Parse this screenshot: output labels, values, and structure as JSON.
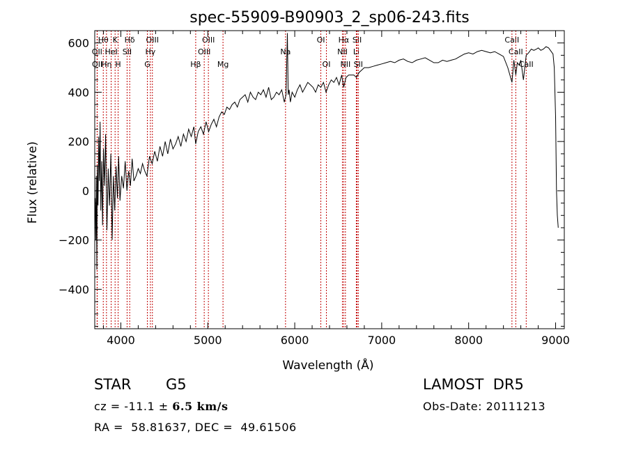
{
  "chart_data": {
    "type": "line",
    "title": "spec-55909-B90903_2_sp06-243.fits",
    "xlabel": "Wavelength (Å)",
    "ylabel": "Flux (relative)",
    "xlim": [
      3700,
      9100
    ],
    "ylim": [
      -560,
      650
    ],
    "xticks": [
      4000,
      5000,
      6000,
      7000,
      8000,
      9000
    ],
    "yticks": [
      -400,
      -200,
      0,
      200,
      400,
      600
    ],
    "x_minor_step": 200,
    "y_minor_step": 50,
    "series": [
      {
        "x": [
          3705,
          3712,
          3718,
          3724,
          3730,
          3738,
          3746,
          3754,
          3762,
          3770,
          3780,
          3790,
          3800,
          3812,
          3825,
          3840,
          3855,
          3870,
          3885,
          3900,
          3915,
          3930,
          3945,
          3960,
          3975,
          3990,
          4010,
          4030,
          4050,
          4070,
          4090,
          4110,
          4130,
          4150,
          4175,
          4200,
          4225,
          4250,
          4275,
          4300,
          4330,
          4360,
          4390,
          4420,
          4450,
          4480,
          4510,
          4540,
          4570,
          4600,
          4630,
          4660,
          4690,
          4720,
          4750,
          4780,
          4810,
          4840,
          4861,
          4890,
          4920,
          4950,
          4980,
          5010,
          5040,
          5070,
          5100,
          5130,
          5160,
          5190,
          5220,
          5250,
          5280,
          5310,
          5340,
          5370,
          5400,
          5430,
          5460,
          5490,
          5520,
          5550,
          5580,
          5610,
          5640,
          5670,
          5700,
          5730,
          5760,
          5790,
          5820,
          5850,
          5880,
          5900,
          5915,
          5925,
          5935,
          5950,
          5970,
          6000,
          6030,
          6060,
          6090,
          6120,
          6150,
          6180,
          6210,
          6240,
          6270,
          6300,
          6330,
          6360,
          6390,
          6420,
          6450,
          6480,
          6510,
          6540,
          6563,
          6590,
          6620,
          6650,
          6680,
          6710,
          6740,
          6770,
          6800,
          6850,
          6900,
          6950,
          7000,
          7050,
          7100,
          7150,
          7200,
          7250,
          7300,
          7350,
          7400,
          7450,
          7500,
          7550,
          7600,
          7650,
          7700,
          7750,
          7800,
          7850,
          7900,
          7950,
          8000,
          8050,
          8100,
          8150,
          8200,
          8250,
          8300,
          8350,
          8400,
          8450,
          8498,
          8520,
          8542,
          8560,
          8580,
          8600,
          8630,
          8662,
          8690,
          8720,
          8750,
          8780,
          8800,
          8830,
          8860,
          8890,
          8920,
          8950,
          8970,
          8985,
          9000,
          9010,
          9020,
          9030
        ],
        "y": [
          -30,
          -200,
          60,
          -320,
          100,
          -60,
          220,
          40,
          280,
          -80,
          120,
          -140,
          170,
          20,
          230,
          -160,
          90,
          -60,
          150,
          -200,
          60,
          -80,
          100,
          -30,
          140,
          -40,
          60,
          10,
          120,
          0,
          80,
          20,
          130,
          40,
          60,
          90,
          70,
          110,
          80,
          60,
          140,
          110,
          160,
          120,
          180,
          140,
          200,
          150,
          210,
          170,
          190,
          220,
          180,
          230,
          200,
          250,
          220,
          260,
          190,
          240,
          260,
          230,
          280,
          240,
          270,
          290,
          260,
          300,
          320,
          310,
          340,
          330,
          350,
          360,
          340,
          370,
          380,
          390,
          360,
          400,
          380,
          370,
          400,
          390,
          410,
          380,
          420,
          370,
          380,
          400,
          390,
          410,
          360,
          390,
          640,
          390,
          410,
          360,
          400,
          380,
          410,
          430,
          400,
          420,
          440,
          430,
          420,
          400,
          430,
          420,
          440,
          400,
          430,
          450,
          440,
          460,
          430,
          470,
          420,
          460,
          470,
          470,
          470,
          460,
          480,
          490,
          500,
          500,
          505,
          510,
          515,
          520,
          525,
          520,
          530,
          535,
          525,
          520,
          530,
          535,
          540,
          530,
          520,
          520,
          530,
          525,
          530,
          535,
          545,
          555,
          560,
          555,
          565,
          570,
          565,
          560,
          565,
          555,
          545,
          500,
          440,
          530,
          470,
          520,
          510,
          530,
          450,
          550,
          560,
          575,
          570,
          575,
          580,
          570,
          575,
          585,
          580,
          565,
          555,
          500,
          300,
          0,
          -100,
          -150
        ]
      }
    ],
    "line_markers": [
      {
        "label": "Hθ",
        "wavelength": 3798,
        "row": 1
      },
      {
        "label": "OII",
        "wavelength": 3727,
        "row": 2
      },
      {
        "label": "OII",
        "wavelength": 3729,
        "row": 3
      },
      {
        "label": "Hη",
        "wavelength": 3835,
        "row": 3
      },
      {
        "label": "HeI",
        "wavelength": 3889,
        "row": 2
      },
      {
        "label": "K",
        "wavelength": 3934,
        "row": 1
      },
      {
        "label": "H",
        "wavelength": 3969,
        "row": 3
      },
      {
        "label": "Hδ",
        "wavelength": 4102,
        "row": 1
      },
      {
        "label": "SII",
        "wavelength": 4072,
        "row": 2
      },
      {
        "label": "OIII",
        "wavelength": 4363,
        "row": 1
      },
      {
        "label": "Hγ",
        "wavelength": 4340,
        "row": 2
      },
      {
        "label": "G",
        "wavelength": 4305,
        "row": 3
      },
      {
        "label": "Hβ",
        "wavelength": 4861,
        "row": 3
      },
      {
        "label": "OIII",
        "wavelength": 5007,
        "row": 1
      },
      {
        "label": "OIII",
        "wavelength": 4959,
        "row": 2
      },
      {
        "label": "Mg",
        "wavelength": 5175,
        "row": 3
      },
      {
        "label": "Na",
        "wavelength": 5894,
        "row": 2
      },
      {
        "label": "OI",
        "wavelength": 6300,
        "row": 1
      },
      {
        "label": "OI",
        "wavelength": 6364,
        "row": 3
      },
      {
        "label": "Hα",
        "wavelength": 6563,
        "row": 1
      },
      {
        "label": "NII",
        "wavelength": 6548,
        "row": 2
      },
      {
        "label": "NII",
        "wavelength": 6583,
        "row": 3
      },
      {
        "label": "SII",
        "wavelength": 6717,
        "row": 1
      },
      {
        "label": "Li",
        "wavelength": 6708,
        "row": 2
      },
      {
        "label": "SII",
        "wavelength": 6731,
        "row": 3
      },
      {
        "label": "CaII",
        "wavelength": 8498,
        "row": 1
      },
      {
        "label": "CaII",
        "wavelength": 8542,
        "row": 2
      },
      {
        "label": "CaII",
        "wavelength": 8662,
        "row": 3
      }
    ]
  },
  "info": {
    "class": "STAR",
    "subclass": "G5",
    "survey": "LAMOST  DR5",
    "cz_prefix": "cz = -11.1 ± ",
    "cz_error": "6.5 km/s",
    "obs_date": "Obs-Date: 20111213",
    "coords": "RA =  58.81637, DEC =  49.61506"
  }
}
